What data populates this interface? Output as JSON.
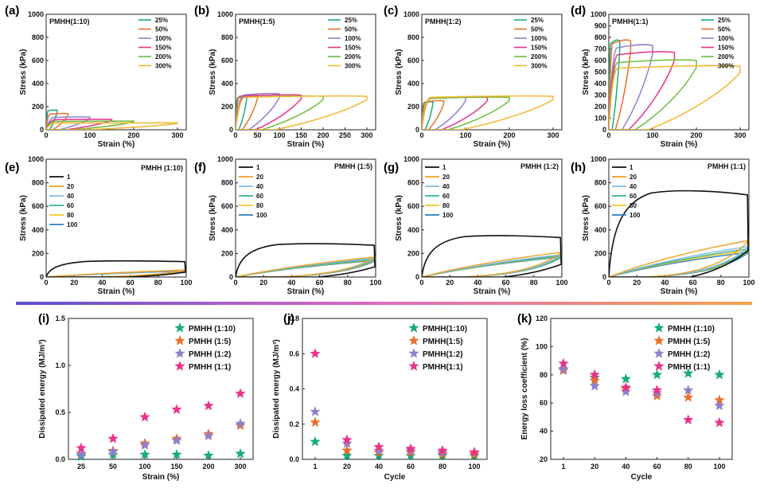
{
  "strain_legend": [
    "25%",
    "50%",
    "100%",
    "150%",
    "200%",
    "300%"
  ],
  "strain_colors": [
    "#1aab7c",
    "#e8702a",
    "#8f7fcf",
    "#e8338a",
    "#6dbb3a",
    "#f3b62f"
  ],
  "cycle_legend": [
    "1",
    "20",
    "40",
    "60",
    "80",
    "100"
  ],
  "cycle_colors": [
    "#111111",
    "#f0a020",
    "#7fbde8",
    "#35b38a",
    "#f3c428",
    "#2b7fc0"
  ],
  "sample_colors": {
    "PMHH (1:10)": "#1aab7c",
    "PMHH (1:5)": "#e8702a",
    "PMHH (1:2)": "#8f7fcf",
    "PMHH (1:1)": "#e8338a"
  },
  "gradient_colors": [
    "#5a4fcf",
    "#e06ac0",
    "#f7a24a"
  ],
  "chart_data": [
    {
      "id": "a",
      "panel_label": "(a)",
      "type": "line",
      "title": "PMHH(1:10)",
      "xlabel": "Strain (%)",
      "ylabel": "Stress (kPa)",
      "xlim": [
        0,
        320
      ],
      "ylim": [
        0,
        1000
      ],
      "xticks": [
        0,
        100,
        200,
        300
      ],
      "yticks": [
        0,
        200,
        400,
        600,
        800,
        1000
      ],
      "series": [
        {
          "name": "25%",
          "strain": 25,
          "peak_stress": 170
        },
        {
          "name": "50%",
          "strain": 50,
          "peak_stress": 140
        },
        {
          "name": "100%",
          "strain": 100,
          "peak_stress": 110
        },
        {
          "name": "150%",
          "strain": 150,
          "peak_stress": 90
        },
        {
          "name": "200%",
          "strain": 200,
          "peak_stress": 75
        },
        {
          "name": "300%",
          "strain": 300,
          "peak_stress": 60
        }
      ]
    },
    {
      "id": "b",
      "panel_label": "(b)",
      "type": "line",
      "title": "PMHH(1:5)",
      "xlabel": "Strain (%)",
      "ylabel": "Stress (kPa)",
      "xlim": [
        0,
        320
      ],
      "ylim": [
        0,
        1000
      ],
      "xticks": [
        0,
        50,
        100,
        150,
        200,
        250,
        300
      ],
      "yticks": [
        0,
        200,
        400,
        600,
        800,
        1000
      ],
      "series": [
        {
          "name": "25%",
          "strain": 25,
          "peak_stress": 285
        },
        {
          "name": "50%",
          "strain": 50,
          "peak_stress": 300
        },
        {
          "name": "100%",
          "strain": 100,
          "peak_stress": 310
        },
        {
          "name": "150%",
          "strain": 150,
          "peak_stress": 300
        },
        {
          "name": "200%",
          "strain": 200,
          "peak_stress": 290
        },
        {
          "name": "300%",
          "strain": 300,
          "peak_stress": 290
        }
      ]
    },
    {
      "id": "c",
      "panel_label": "(c)",
      "type": "line",
      "title": "PMHH(1:2)",
      "xlabel": "Strain (%)",
      "ylabel": "Stress (kPa)",
      "xlim": [
        0,
        320
      ],
      "ylim": [
        0,
        1000
      ],
      "xticks": [
        0,
        100,
        200,
        300
      ],
      "yticks": [
        0,
        200,
        400,
        600,
        800,
        1000
      ],
      "series": [
        {
          "name": "25%",
          "strain": 25,
          "peak_stress": 240
        },
        {
          "name": "50%",
          "strain": 50,
          "peak_stress": 250
        },
        {
          "name": "100%",
          "strain": 100,
          "peak_stress": 280
        },
        {
          "name": "150%",
          "strain": 150,
          "peak_stress": 280
        },
        {
          "name": "200%",
          "strain": 200,
          "peak_stress": 280
        },
        {
          "name": "300%",
          "strain": 300,
          "peak_stress": 290
        }
      ]
    },
    {
      "id": "d",
      "panel_label": "(d)",
      "type": "line",
      "title": "PMHH(1:1)",
      "xlabel": "Strain (%)",
      "ylabel": "Stress (kPa)",
      "xlim": [
        0,
        320
      ],
      "ylim": [
        0,
        1000
      ],
      "xticks": [
        0,
        100,
        200,
        300
      ],
      "yticks": [
        0,
        100,
        200,
        300,
        400,
        500,
        600,
        700,
        800,
        900,
        1000
      ],
      "series": [
        {
          "name": "25%",
          "strain": 25,
          "peak_stress": 770
        },
        {
          "name": "50%",
          "strain": 50,
          "peak_stress": 770
        },
        {
          "name": "100%",
          "strain": 100,
          "peak_stress": 730
        },
        {
          "name": "150%",
          "strain": 150,
          "peak_stress": 670
        },
        {
          "name": "200%",
          "strain": 200,
          "peak_stress": 600
        },
        {
          "name": "300%",
          "strain": 300,
          "peak_stress": 550
        }
      ]
    },
    {
      "id": "e",
      "panel_label": "(e)",
      "type": "line",
      "title": "PMHH (1:10)",
      "xlabel": "Strain (%)",
      "ylabel": "Stress (kPa)",
      "xlim": [
        0,
        100
      ],
      "ylim": [
        0,
        1000
      ],
      "xticks": [
        0,
        20,
        40,
        60,
        80,
        100
      ],
      "yticks": [
        0,
        200,
        400,
        600,
        800,
        1000
      ],
      "series": [
        {
          "name": "1",
          "peak_stress": 140
        },
        {
          "name": "20",
          "peak_stress": 60
        },
        {
          "name": "40",
          "peak_stress": 55
        },
        {
          "name": "60",
          "peak_stress": 55
        },
        {
          "name": "80",
          "peak_stress": 55
        },
        {
          "name": "100",
          "peak_stress": 50
        }
      ]
    },
    {
      "id": "f",
      "panel_label": "(f)",
      "type": "line",
      "title": "PMHH (1:5)",
      "xlabel": "Strain (%)",
      "ylabel": "Stress (kPa)",
      "xlim": [
        0,
        100
      ],
      "ylim": [
        0,
        1000
      ],
      "xticks": [
        0,
        20,
        40,
        60,
        80,
        100
      ],
      "yticks": [
        0,
        200,
        400,
        600,
        800,
        1000
      ],
      "series": [
        {
          "name": "1",
          "peak_stress": 290
        },
        {
          "name": "20",
          "peak_stress": 170
        },
        {
          "name": "40",
          "peak_stress": 160
        },
        {
          "name": "60",
          "peak_stress": 150
        },
        {
          "name": "80",
          "peak_stress": 145
        },
        {
          "name": "100",
          "peak_stress": 140
        }
      ]
    },
    {
      "id": "g",
      "panel_label": "(g)",
      "type": "line",
      "title": "PMHH (1:2)",
      "xlabel": "Strain (%)",
      "ylabel": "Stress (kPa)",
      "xlim": [
        0,
        100
      ],
      "ylim": [
        0,
        1000
      ],
      "xticks": [
        0,
        20,
        40,
        60,
        80,
        100
      ],
      "yticks": [
        0,
        200,
        400,
        600,
        800,
        1000
      ],
      "series": [
        {
          "name": "1",
          "peak_stress": 360
        },
        {
          "name": "20",
          "peak_stress": 210
        },
        {
          "name": "40",
          "peak_stress": 190
        },
        {
          "name": "60",
          "peak_stress": 180
        },
        {
          "name": "80",
          "peak_stress": 175
        },
        {
          "name": "100",
          "peak_stress": 170
        }
      ]
    },
    {
      "id": "h",
      "panel_label": "(h)",
      "type": "line",
      "title": "PMHH (1:1)",
      "xlabel": "Strain (%)",
      "ylabel": "Stress (kPa)",
      "xlim": [
        0,
        100
      ],
      "ylim": [
        0,
        1000
      ],
      "xticks": [
        0,
        20,
        40,
        60,
        80,
        100
      ],
      "yticks": [
        0,
        200,
        400,
        600,
        800,
        1000
      ],
      "series": [
        {
          "name": "1",
          "peak_stress": 750
        },
        {
          "name": "20",
          "peak_stress": 310
        },
        {
          "name": "40",
          "peak_stress": 260
        },
        {
          "name": "60",
          "peak_stress": 240
        },
        {
          "name": "80",
          "peak_stress": 225
        },
        {
          "name": "100",
          "peak_stress": 210
        }
      ]
    },
    {
      "id": "i",
      "panel_label": "(i)",
      "type": "scatter",
      "xlabel": "Strain (%)",
      "ylabel": "Dissipated energy (MJ/m³)",
      "categories": [
        "25",
        "50",
        "100",
        "150",
        "200",
        "300"
      ],
      "ylim": [
        0,
        1.5
      ],
      "yticks": [
        "0.0",
        "0.5",
        "1.0",
        "1.5"
      ],
      "series": [
        {
          "name": "PMHH (1:10)",
          "values": [
            0.03,
            0.05,
            0.05,
            0.05,
            0.04,
            0.06
          ]
        },
        {
          "name": "PMHH (1:5)",
          "values": [
            0.06,
            0.09,
            0.17,
            0.22,
            0.27,
            0.36
          ]
        },
        {
          "name": "PMHH (1:2)",
          "values": [
            0.05,
            0.08,
            0.15,
            0.2,
            0.25,
            0.38
          ]
        },
        {
          "name": "PMHH (1:1)",
          "values": [
            0.12,
            0.22,
            0.45,
            0.53,
            0.57,
            0.7
          ]
        }
      ]
    },
    {
      "id": "j",
      "panel_label": "(j)",
      "type": "scatter",
      "xlabel": "Cycle",
      "ylabel": "Dissipated energy (MJ/m³)",
      "categories": [
        "1",
        "20",
        "40",
        "60",
        "80",
        "100"
      ],
      "ylim": [
        0,
        0.8
      ],
      "yticks": [
        "0.0",
        "0.2",
        "0.4",
        "0.6",
        "0.8"
      ],
      "series": [
        {
          "name": "PMHH(1:10)",
          "values": [
            0.1,
            0.02,
            0.02,
            0.02,
            0.02,
            0.02
          ]
        },
        {
          "name": "PMHH(1:5)",
          "values": [
            0.21,
            0.05,
            0.04,
            0.04,
            0.03,
            0.03
          ]
        },
        {
          "name": "PMHH(1:2)",
          "values": [
            0.27,
            0.09,
            0.05,
            0.05,
            0.04,
            0.04
          ]
        },
        {
          "name": "PMHH(1:1)",
          "values": [
            0.6,
            0.11,
            0.07,
            0.06,
            0.05,
            0.04
          ]
        }
      ]
    },
    {
      "id": "k",
      "panel_label": "(k)",
      "type": "scatter",
      "xlabel": "Cycle",
      "ylabel": "Energy loss coefficient (%)",
      "categories": [
        "1",
        "20",
        "40",
        "60",
        "80",
        "100"
      ],
      "ylim": [
        20,
        120
      ],
      "yticks": [
        "20",
        "40",
        "60",
        "80",
        "100",
        "120"
      ],
      "series": [
        {
          "name": "PMHH (1:10)",
          "values": [
            84,
            78,
            77,
            80,
            81,
            80
          ]
        },
        {
          "name": "PMHH (1:5)",
          "values": [
            83,
            76,
            70,
            65,
            64,
            62
          ]
        },
        {
          "name": "PMHH (1:2)",
          "values": [
            84,
            72,
            68,
            67,
            69,
            58
          ]
        },
        {
          "name": "PMHH (1:1)",
          "values": [
            88,
            80,
            71,
            69,
            48,
            46
          ]
        }
      ]
    }
  ]
}
